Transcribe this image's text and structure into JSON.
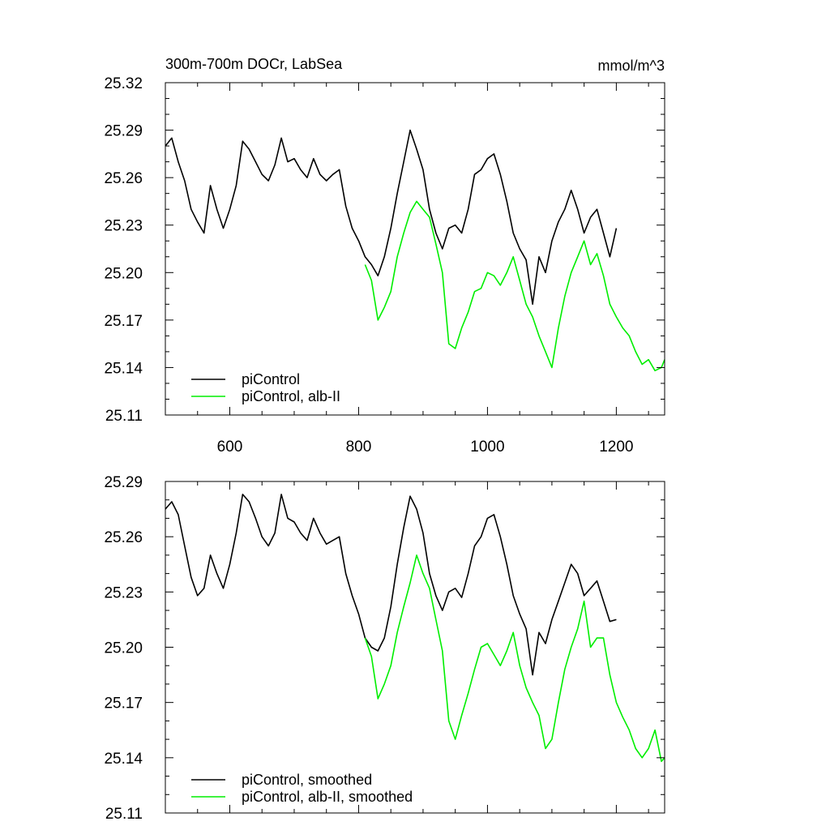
{
  "chart_data": [
    {
      "type": "line",
      "title": "300m-700m DOCr, LabSea",
      "units": "mmol/m^3",
      "xlim": [
        500,
        1275
      ],
      "ylim": [
        25.11,
        25.32
      ],
      "x_ticks": [
        600,
        800,
        1000,
        1200
      ],
      "y_ticks": [
        "25.11",
        "25.14",
        "25.17",
        "25.20",
        "25.23",
        "25.26",
        "25.29",
        "25.32"
      ],
      "legend_position": "bottom-left",
      "grid": false,
      "series": [
        {
          "name": "piControl",
          "color": "#000000",
          "x": [
            500,
            510,
            520,
            530,
            540,
            550,
            560,
            570,
            580,
            590,
            600,
            610,
            620,
            630,
            640,
            650,
            660,
            670,
            680,
            690,
            700,
            710,
            720,
            730,
            740,
            750,
            760,
            770,
            780,
            790,
            800,
            810,
            820,
            830,
            840,
            850,
            860,
            870,
            880,
            890,
            900,
            910,
            920,
            930,
            940,
            950,
            960,
            970,
            980,
            990,
            1000,
            1010,
            1020,
            1030,
            1040,
            1050,
            1060,
            1070,
            1080,
            1090,
            1100,
            1110,
            1120,
            1130,
            1140,
            1150,
            1160,
            1170,
            1180,
            1190,
            1200
          ],
          "values": [
            25.28,
            25.285,
            25.27,
            25.258,
            25.24,
            25.232,
            25.225,
            25.255,
            25.24,
            25.228,
            25.24,
            25.255,
            25.283,
            25.278,
            25.27,
            25.262,
            25.258,
            25.268,
            25.285,
            25.27,
            25.272,
            25.265,
            25.26,
            25.272,
            25.262,
            25.258,
            25.262,
            25.265,
            25.242,
            25.228,
            25.22,
            25.21,
            25.205,
            25.198,
            25.21,
            25.228,
            25.25,
            25.27,
            25.29,
            25.278,
            25.265,
            25.24,
            25.225,
            25.215,
            25.228,
            25.23,
            25.225,
            25.24,
            25.262,
            25.265,
            25.272,
            25.275,
            25.262,
            25.245,
            25.225,
            25.215,
            25.208,
            25.18,
            25.21,
            25.2,
            25.22,
            25.232,
            25.24,
            25.252,
            25.24,
            25.225,
            25.235,
            25.24,
            25.225,
            25.21,
            25.228
          ]
        },
        {
          "name": "piControl, alb-II",
          "color": "#00ee00",
          "x": [
            810,
            820,
            830,
            840,
            850,
            860,
            870,
            880,
            890,
            900,
            910,
            920,
            930,
            940,
            950,
            960,
            970,
            980,
            990,
            1000,
            1010,
            1020,
            1030,
            1040,
            1050,
            1060,
            1070,
            1080,
            1090,
            1100,
            1110,
            1120,
            1130,
            1140,
            1150,
            1160,
            1170,
            1180,
            1190,
            1200,
            1210,
            1220,
            1230,
            1240,
            1250,
            1260,
            1270,
            1275
          ],
          "values": [
            25.205,
            25.195,
            25.17,
            25.178,
            25.188,
            25.21,
            25.225,
            25.238,
            25.245,
            25.24,
            25.235,
            25.218,
            25.2,
            25.155,
            25.152,
            25.165,
            25.175,
            25.188,
            25.19,
            25.2,
            25.198,
            25.192,
            25.2,
            25.21,
            25.195,
            25.18,
            25.172,
            25.16,
            25.15,
            25.14,
            25.165,
            25.185,
            25.2,
            25.21,
            25.22,
            25.205,
            25.212,
            25.198,
            25.18,
            25.172,
            25.165,
            25.16,
            25.15,
            25.142,
            25.145,
            25.138,
            25.14,
            25.145
          ]
        }
      ]
    },
    {
      "type": "line",
      "xlim": [
        500,
        1275
      ],
      "ylim": [
        25.11,
        25.29
      ],
      "x_ticks": [
        600,
        800,
        1000,
        1200
      ],
      "y_ticks": [
        "25.11",
        "25.14",
        "25.17",
        "25.20",
        "25.23",
        "25.26",
        "25.29"
      ],
      "legend_position": "bottom-left",
      "grid": false,
      "series": [
        {
          "name": "piControl, smoothed",
          "color": "#000000",
          "x": [
            500,
            510,
            520,
            530,
            540,
            550,
            560,
            570,
            580,
            590,
            600,
            610,
            620,
            630,
            640,
            650,
            660,
            670,
            680,
            690,
            700,
            710,
            720,
            730,
            740,
            750,
            760,
            770,
            780,
            790,
            800,
            810,
            820,
            830,
            840,
            850,
            860,
            870,
            880,
            890,
            900,
            910,
            920,
            930,
            940,
            950,
            960,
            970,
            980,
            990,
            1000,
            1010,
            1020,
            1030,
            1040,
            1050,
            1060,
            1070,
            1080,
            1090,
            1100,
            1110,
            1120,
            1130,
            1140,
            1150,
            1160,
            1170,
            1180,
            1190,
            1200
          ],
          "values": [
            25.275,
            25.279,
            25.272,
            25.255,
            25.238,
            25.228,
            25.232,
            25.25,
            25.24,
            25.232,
            25.245,
            25.262,
            25.283,
            25.279,
            25.27,
            25.26,
            25.255,
            25.262,
            25.283,
            25.27,
            25.268,
            25.262,
            25.258,
            25.27,
            25.262,
            25.256,
            25.258,
            25.26,
            25.24,
            25.228,
            25.218,
            25.205,
            25.2,
            25.198,
            25.205,
            25.222,
            25.245,
            25.265,
            25.282,
            25.275,
            25.262,
            25.24,
            25.228,
            25.22,
            25.23,
            25.232,
            25.227,
            25.24,
            25.255,
            25.26,
            25.27,
            25.272,
            25.26,
            25.245,
            25.228,
            25.218,
            25.21,
            25.185,
            25.208,
            25.202,
            25.215,
            25.225,
            25.235,
            25.245,
            25.24,
            25.228,
            25.232,
            25.236,
            25.225,
            25.214,
            25.215
          ]
        },
        {
          "name": "piControl, alb-II, smoothed",
          "color": "#00ee00",
          "x": [
            810,
            820,
            830,
            840,
            850,
            860,
            870,
            880,
            890,
            900,
            910,
            920,
            930,
            940,
            950,
            960,
            970,
            980,
            990,
            1000,
            1010,
            1020,
            1030,
            1040,
            1050,
            1060,
            1070,
            1080,
            1090,
            1100,
            1110,
            1120,
            1130,
            1140,
            1150,
            1160,
            1170,
            1180,
            1190,
            1200,
            1210,
            1220,
            1230,
            1240,
            1250,
            1260,
            1270,
            1275
          ],
          "values": [
            25.205,
            25.195,
            25.172,
            25.18,
            25.19,
            25.208,
            25.222,
            25.235,
            25.25,
            25.24,
            25.232,
            25.215,
            25.198,
            25.16,
            25.15,
            25.163,
            25.175,
            25.188,
            25.2,
            25.202,
            25.196,
            25.19,
            25.198,
            25.208,
            25.19,
            25.178,
            25.17,
            25.163,
            25.145,
            25.15,
            25.17,
            25.188,
            25.2,
            25.21,
            25.225,
            25.2,
            25.205,
            25.205,
            25.185,
            25.17,
            25.162,
            25.155,
            25.145,
            25.14,
            25.145,
            25.155,
            25.138,
            25.14
          ]
        }
      ]
    }
  ]
}
